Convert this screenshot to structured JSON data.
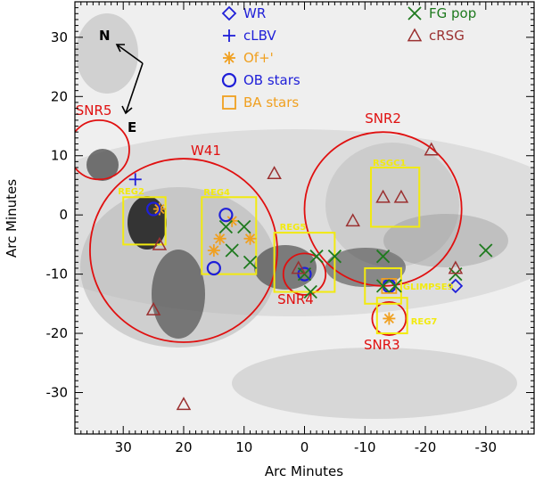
{
  "chart_data": {
    "type": "scatter",
    "xlabel": "Arc Minutes",
    "ylabel": "Arc Minutes",
    "xlim": [
      38,
      -38
    ],
    "ylim": [
      -37,
      36
    ],
    "xticks": [
      30,
      20,
      10,
      0,
      -10,
      -20,
      -30
    ],
    "yticks": [
      30,
      20,
      10,
      0,
      -10,
      -20,
      -30
    ],
    "compass": {
      "north_label": "N",
      "east_label": "E"
    },
    "legend": [
      {
        "name": "WR",
        "marker": "diamond",
        "color": "#1f1fd8"
      },
      {
        "name": "cLBV",
        "marker": "plus",
        "color": "#1f1fd8"
      },
      {
        "name": "Of+'",
        "marker": "asterisk",
        "color": "#f0a020"
      },
      {
        "name": "OB stars",
        "marker": "circle",
        "color": "#1f1fd8"
      },
      {
        "name": "BA stars",
        "marker": "square",
        "color": "#f0a020"
      },
      {
        "name": "FG pop",
        "marker": "x",
        "color": "#1e7a1e"
      },
      {
        "name": "cRSG",
        "marker": "triangle",
        "color": "#9b3030"
      }
    ],
    "snr_circles": [
      {
        "label": "SNR5",
        "x": 34,
        "y": 11,
        "r": 5,
        "color": "#e01010"
      },
      {
        "label": "W41",
        "x": 20,
        "y": -6,
        "r": 15.5,
        "color": "#e01010"
      },
      {
        "label": "SNR2",
        "x": -13,
        "y": 1,
        "r": 13,
        "color": "#e01010"
      },
      {
        "label": "SNR4",
        "x": 0,
        "y": -10,
        "r": 3.5,
        "color": "#e01010"
      },
      {
        "label": "SNR3",
        "x": -14,
        "y": -17.5,
        "r": 2.8,
        "color": "#e01010"
      }
    ],
    "region_boxes": [
      {
        "label": "REG2",
        "x0": 30,
        "x1": 23,
        "y0": -5,
        "y1": 3
      },
      {
        "label": "REG4",
        "x0": 17,
        "x1": 8,
        "y0": -10,
        "y1": 3
      },
      {
        "label": "REG5",
        "x0": 5,
        "x1": -5,
        "y0": -13,
        "y1": -3
      },
      {
        "label": "RSGC1",
        "x0": -11,
        "x1": -19,
        "y0": -2,
        "y1": 8
      },
      {
        "label": "GLIMPSE9",
        "x0": -10,
        "x1": -16,
        "y0": -15,
        "y1": -9
      },
      {
        "label": "REG7",
        "x0": -12,
        "x1": -17,
        "y0": -20,
        "y1": -14
      }
    ],
    "series": [
      {
        "name": "WR",
        "points": [
          [
            -25,
            -12
          ],
          [
            -14,
            -12
          ]
        ]
      },
      {
        "name": "cLBV",
        "points": [
          [
            28,
            6
          ]
        ]
      },
      {
        "name": "Of+'",
        "points": [
          [
            24,
            1
          ],
          [
            15,
            -6
          ],
          [
            14,
            -4
          ],
          [
            12,
            -1
          ],
          [
            9,
            -4
          ],
          [
            -14,
            -17.5
          ]
        ]
      },
      {
        "name": "OB stars",
        "points": [
          [
            25,
            1
          ],
          [
            15,
            -9
          ],
          [
            13,
            0
          ],
          [
            0,
            -10
          ],
          [
            -14,
            -12
          ]
        ]
      },
      {
        "name": "BA stars",
        "points": [
          [
            -14,
            -12
          ]
        ]
      },
      {
        "name": "FG pop",
        "points": [
          [
            13,
            -2
          ],
          [
            12,
            -6
          ],
          [
            10,
            -2
          ],
          [
            9,
            -8
          ],
          [
            -2,
            -7
          ],
          [
            -5,
            -7
          ],
          [
            0,
            -10
          ],
          [
            -1,
            -13
          ],
          [
            -13,
            -7
          ],
          [
            -13,
            -12
          ],
          [
            -15,
            -12
          ],
          [
            -25,
            -10
          ],
          [
            -30,
            -6
          ]
        ]
      },
      {
        "name": "cRSG",
        "points": [
          [
            24,
            -5
          ],
          [
            25,
            -16
          ],
          [
            20,
            -32
          ],
          [
            5,
            7
          ],
          [
            1,
            -9
          ],
          [
            -8,
            -1
          ],
          [
            -13,
            3
          ],
          [
            -16,
            3
          ],
          [
            -21,
            11
          ],
          [
            -25,
            -9
          ]
        ]
      }
    ]
  }
}
